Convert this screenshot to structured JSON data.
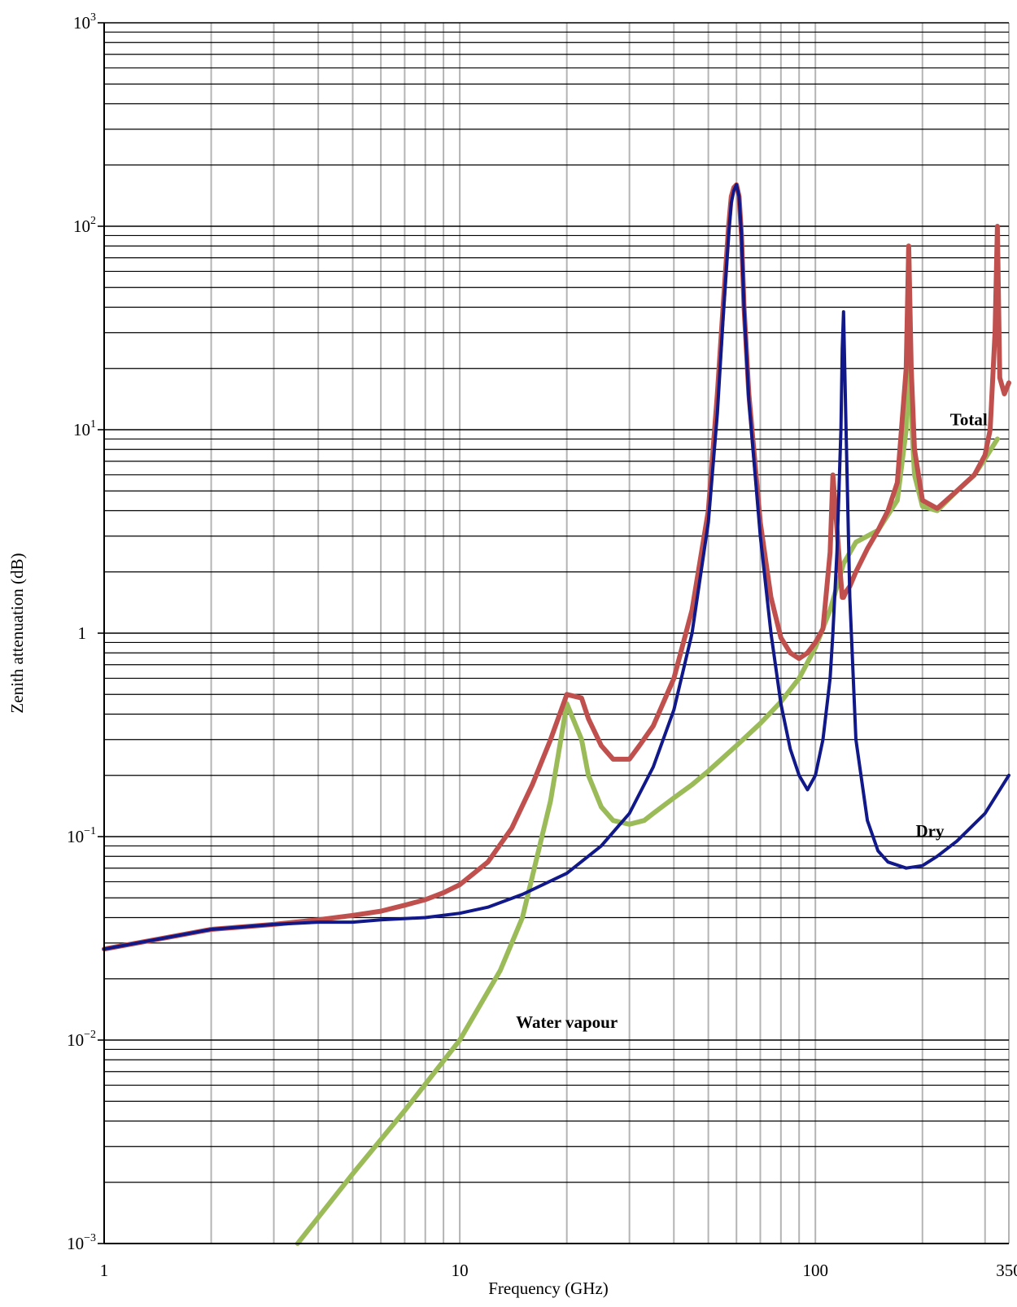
{
  "chart_data": {
    "type": "line",
    "title": "",
    "xlabel": "Frequency (GHz)",
    "ylabel": "Zenith attenuation (dB)",
    "x_scale": "log",
    "y_scale": "log",
    "xlim": [
      1,
      350
    ],
    "ylim": [
      0.001,
      1000
    ],
    "grid": true,
    "legend": "none",
    "x_tick_labels": [
      "1",
      "10",
      "100",
      "350"
    ],
    "x_tick_values": [
      1,
      10,
      100,
      350
    ],
    "y_ticks": [
      {
        "value": 0.001,
        "base": "10",
        "exp": "−3"
      },
      {
        "value": 0.01,
        "base": "10",
        "exp": "−2"
      },
      {
        "value": 0.1,
        "base": "10",
        "exp": "−1"
      },
      {
        "value": 1,
        "base": "1",
        "exp": ""
      },
      {
        "value": 10,
        "base": "10",
        "exp": "1"
      },
      {
        "value": 100,
        "base": "10",
        "exp": "2"
      },
      {
        "value": 1000,
        "base": "10",
        "exp": "3"
      }
    ],
    "series": [
      {
        "name": "Total",
        "color": "#c0504d",
        "x": [
          1,
          2,
          3,
          4,
          5,
          6,
          7,
          8,
          9,
          10,
          12,
          14,
          16,
          18,
          20,
          22,
          23,
          25,
          27,
          30,
          32,
          35,
          40,
          45,
          50,
          53,
          55,
          57,
          58,
          59,
          60,
          61,
          62,
          63,
          65,
          70,
          75,
          80,
          85,
          90,
          95,
          100,
          105,
          110,
          112,
          118,
          119,
          120,
          122,
          125,
          130,
          140,
          150,
          160,
          170,
          180,
          183,
          186,
          190,
          200,
          220,
          250,
          280,
          300,
          310,
          320,
          325,
          330,
          340,
          350
        ],
        "y": [
          0.028,
          0.035,
          0.037,
          0.039,
          0.041,
          0.043,
          0.046,
          0.049,
          0.053,
          0.058,
          0.075,
          0.11,
          0.18,
          0.3,
          0.5,
          0.48,
          0.38,
          0.28,
          0.24,
          0.24,
          0.28,
          0.35,
          0.6,
          1.3,
          4,
          15,
          40,
          100,
          140,
          155,
          160,
          140,
          90,
          40,
          15,
          3.5,
          1.5,
          0.95,
          0.8,
          0.75,
          0.8,
          0.9,
          1.05,
          2.5,
          6,
          1.8,
          1.5,
          1.5,
          1.6,
          1.7,
          2,
          2.6,
          3.2,
          4,
          5.5,
          20,
          80,
          20,
          8,
          4.5,
          4.1,
          5,
          6,
          7.5,
          10,
          30,
          100,
          18,
          15,
          17
        ]
      },
      {
        "name": "Dry",
        "color": "#10188a",
        "x": [
          1,
          2,
          3,
          4,
          5,
          6,
          8,
          10,
          12,
          15,
          20,
          25,
          30,
          35,
          40,
          45,
          50,
          53,
          55,
          57,
          58,
          59,
          60,
          61,
          62,
          63,
          65,
          70,
          75,
          80,
          85,
          90,
          95,
          100,
          105,
          110,
          112,
          115,
          118,
          119,
          120,
          122,
          125,
          130,
          140,
          150,
          160,
          180,
          200,
          220,
          250,
          300,
          350
        ],
        "y": [
          0.028,
          0.035,
          0.037,
          0.038,
          0.038,
          0.039,
          0.04,
          0.042,
          0.045,
          0.052,
          0.066,
          0.09,
          0.13,
          0.22,
          0.42,
          1.0,
          3.5,
          12,
          35,
          90,
          130,
          150,
          160,
          140,
          90,
          40,
          14,
          3.0,
          1.0,
          0.45,
          0.27,
          0.2,
          0.17,
          0.2,
          0.3,
          0.6,
          1.0,
          2.5,
          10,
          25,
          38,
          10,
          1.5,
          0.3,
          0.12,
          0.085,
          0.075,
          0.07,
          0.072,
          0.08,
          0.095,
          0.13,
          0.2
        ]
      },
      {
        "name": "Water vapour",
        "color": "#9bbb59",
        "x": [
          3.5,
          5,
          7,
          10,
          13,
          15,
          18,
          20,
          22,
          23,
          25,
          27,
          30,
          33,
          35,
          40,
          45,
          50,
          60,
          70,
          80,
          90,
          100,
          110,
          120,
          130,
          150,
          170,
          180,
          183,
          186,
          190,
          200,
          220,
          250,
          280,
          300,
          325
        ],
        "y": [
          0.001,
          0.0022,
          0.0045,
          0.01,
          0.022,
          0.04,
          0.15,
          0.45,
          0.3,
          0.2,
          0.14,
          0.12,
          0.115,
          0.12,
          0.13,
          0.155,
          0.18,
          0.21,
          0.28,
          0.36,
          0.46,
          0.6,
          0.85,
          1.3,
          2.2,
          2.8,
          3.2,
          4.5,
          10,
          80,
          12,
          6,
          4.2,
          4.0,
          5.0,
          6.0,
          7.2,
          9
        ]
      }
    ],
    "annotations": [
      {
        "text": "Total",
        "x": 270,
        "y": 10.5
      },
      {
        "text": "Dry",
        "x": 210,
        "y": 0.1
      },
      {
        "text": "Water vapour",
        "x": 20,
        "y": 0.0115
      }
    ]
  }
}
